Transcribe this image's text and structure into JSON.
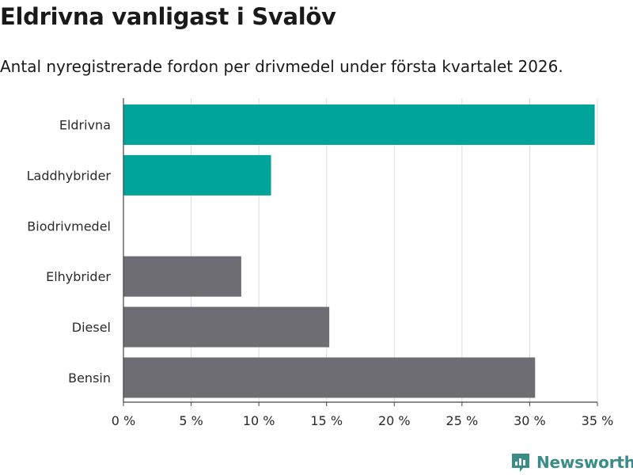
{
  "chart_data": {
    "type": "bar",
    "orientation": "horizontal",
    "title": "Eldrivna vanligast i Svalöv",
    "subtitle": "Antal nyregistrerade fordon per drivmedel under första kvartalet 2026.",
    "categories": [
      "Eldrivna",
      "Laddhybrider",
      "Biodrivmedel",
      "Elhybrider",
      "Diesel",
      "Bensin"
    ],
    "values": [
      34.8,
      10.9,
      0,
      8.7,
      15.2,
      30.4
    ],
    "colors": [
      "#00a49a",
      "#00a49a",
      "#6e6d74",
      "#6e6d74",
      "#6e6d74",
      "#6e6d74"
    ],
    "xlim": [
      0,
      35
    ],
    "xticks": [
      {
        "value": 0,
        "label": "0 %"
      },
      {
        "value": 5,
        "label": "5 %"
      },
      {
        "value": 10,
        "label": "10 %"
      },
      {
        "value": 15,
        "label": "15 %"
      },
      {
        "value": 20,
        "label": "20 %"
      },
      {
        "value": 25,
        "label": "25 %"
      },
      {
        "value": 30,
        "label": "30 %"
      },
      {
        "value": 35,
        "label": "35 %"
      }
    ],
    "xlabel": "",
    "ylabel": "",
    "grid": true
  },
  "brand": {
    "name": "Newsworthy",
    "color": "#3a8d86"
  }
}
